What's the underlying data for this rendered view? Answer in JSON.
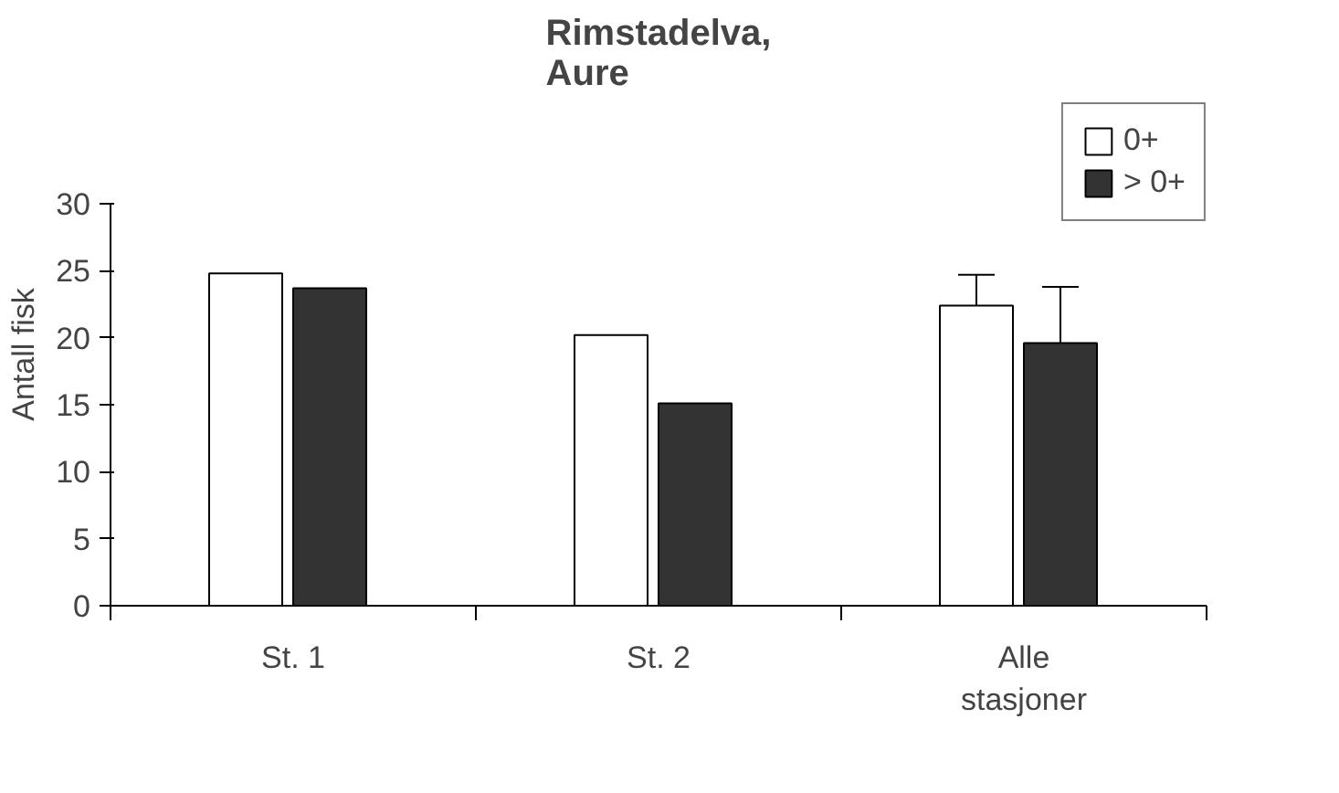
{
  "chart_data": {
    "type": "bar",
    "title": "Rimstadelva,\nAure",
    "ylabel": "Antall fisk",
    "categories": [
      "St. 1",
      "St. 2",
      "Alle\nstasjoner"
    ],
    "series": [
      {
        "name": "0+",
        "color": "#ffffff",
        "values": [
          24.8,
          20.2,
          22.4
        ],
        "errors": [
          null,
          null,
          [
            22.4,
            24.7
          ]
        ]
      },
      {
        "name": "> 0+",
        "color": "#333333",
        "values": [
          23.7,
          15.1,
          19.6
        ],
        "errors": [
          null,
          null,
          [
            19.6,
            23.8
          ]
        ]
      }
    ],
    "ylim": [
      0,
      30
    ],
    "yticks": [
      0,
      5,
      10,
      15,
      20,
      25,
      30
    ],
    "grid": false,
    "legend": "top right"
  }
}
